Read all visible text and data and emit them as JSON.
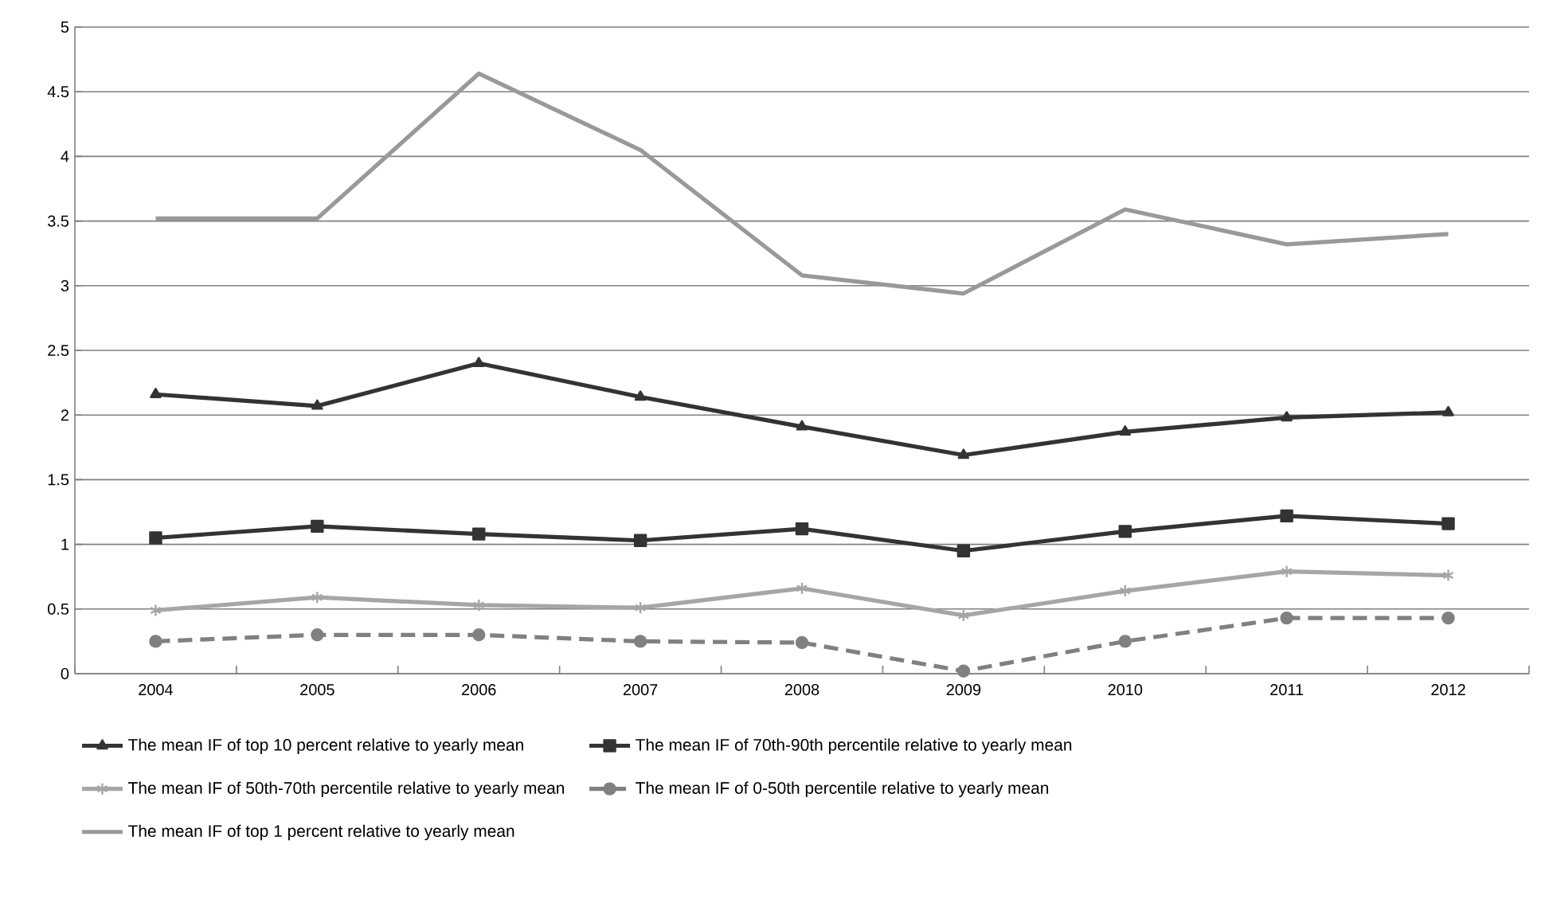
{
  "chart_data": {
    "type": "line",
    "categories": [
      "2004",
      "2005",
      "2006",
      "2007",
      "2008",
      "2009",
      "2010",
      "2011",
      "2012"
    ],
    "series": [
      {
        "name": "The mean IF of top 10 percent relative to yearly mean",
        "color": "#333333",
        "marker": "triangle",
        "line_style": "solid",
        "values": [
          2.16,
          2.07,
          2.4,
          2.14,
          1.91,
          1.69,
          1.87,
          1.98,
          2.02
        ]
      },
      {
        "name": "The mean IF of 70th-90th percentile relative to yearly mean",
        "color": "#333333",
        "marker": "square",
        "line_style": "solid",
        "values": [
          1.05,
          1.14,
          1.08,
          1.03,
          1.12,
          0.95,
          1.1,
          1.22,
          1.16
        ]
      },
      {
        "name": "The mean IF of 50th-70th percentile relative to yearly mean",
        "color": "#a6a6a6",
        "marker": "cross",
        "line_style": "solid",
        "values": [
          0.49,
          0.59,
          0.53,
          0.51,
          0.66,
          0.45,
          0.64,
          0.79,
          0.76
        ]
      },
      {
        "name": "The mean IF of 0-50th percentile relative to yearly mean",
        "color": "#808080",
        "marker": "circle",
        "line_style": "dashed",
        "values": [
          0.25,
          0.3,
          0.3,
          0.25,
          0.24,
          0.02,
          0.25,
          0.43,
          0.43
        ]
      },
      {
        "name": "The mean IF of top 1 percent relative to yearly mean",
        "color": "#999999",
        "marker": "none",
        "line_style": "solid",
        "values": [
          3.52,
          3.52,
          4.64,
          4.05,
          3.08,
          2.94,
          3.59,
          3.32,
          3.4
        ]
      }
    ],
    "ylim": [
      0,
      5
    ],
    "yticks": [
      0,
      0.5,
      1,
      1.5,
      2,
      2.5,
      3,
      3.5,
      4,
      4.5,
      5
    ],
    "grid": "y",
    "legend": "bottom"
  }
}
